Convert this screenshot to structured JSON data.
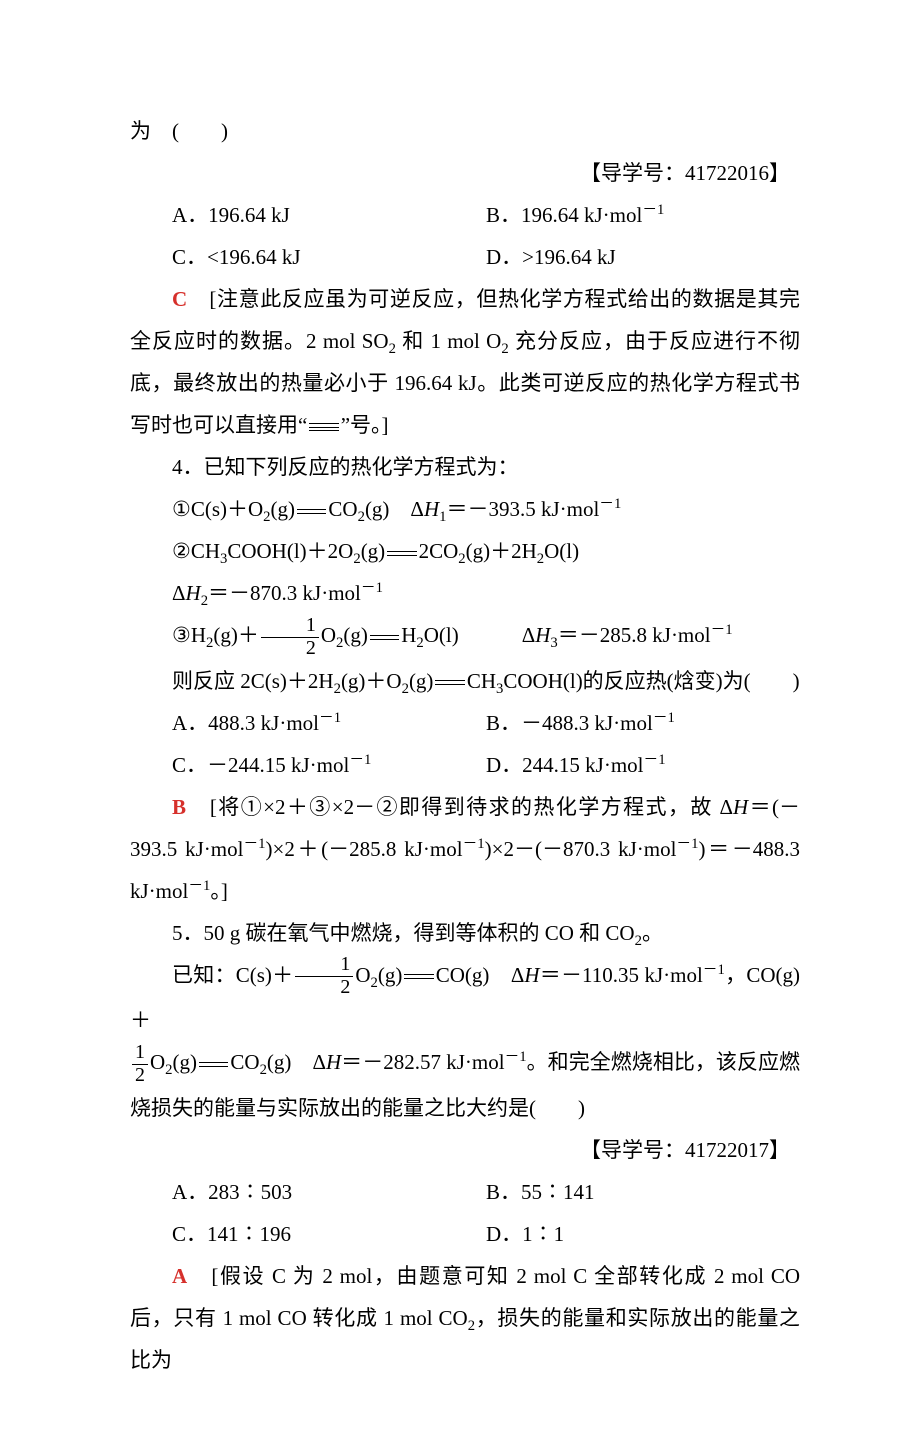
{
  "page": {
    "lead": "为　(　　)",
    "ref3": "【导学号：41722016】",
    "q3opts": {
      "A": "A．196.64 kJ",
      "B": "B．196.64 kJ·mol",
      "B_sup": "－1",
      "C": "C．<196.64 kJ",
      "D": "D．>196.64 kJ"
    },
    "q3ans_letter": "C",
    "q3ans_body": "　[注意此反应虽为可逆反应，但热化学方程式给出的数据是其完全反应时的数据。2 mol SO",
    "q3ans_body2": "和 1 mol O",
    "q3ans_body3": "充分反应，由于反应进行不彻底，最终放出的热量必小于 196.64 kJ。此类可逆反应的热化学方程式书写时也可以直接用“",
    "q3ans_body4": "”号。]",
    "q4stem": "4．已知下列反应的热化学方程式为：",
    "q4eq1_a": "①C(s)＋O",
    "q4eq1_b": "(g)",
    "q4eq1_c": "CO",
    "q4eq1_d": "(g)　Δ",
    "q4eq1_e": "＝－393.5 kJ·mol",
    "q4eq2_a": "②CH",
    "q4eq2_b": "COOH(l)＋2O",
    "q4eq2_c": "(g)",
    "q4eq2_d": "2CO",
    "q4eq2_e": "(g)＋2H",
    "q4eq2_f": "O(l)",
    "q4dh2": "Δ",
    "q4dh2b": "＝－870.3 kJ·mol",
    "q4eq3_a": "③H",
    "q4eq3_b": "(g)＋",
    "q4eq3_c": "O",
    "q4eq3_d": "(g)",
    "q4eq3_e": "H",
    "q4eq3_f": "O(l)",
    "q4eq3_g": "Δ",
    "q4eq3_h": "＝－285.8 kJ·mol",
    "q4then_a": "则反应 2C(s)＋2H",
    "q4then_b": "(g)＋O",
    "q4then_c": "(g)",
    "q4then_d": "CH",
    "q4then_e": "COOH(l)的反应热(焓变)为(　　)",
    "q4opts": {
      "A": "A．488.3 kJ·mol",
      "B": "B．－488.3 kJ·mol",
      "C": "C．－244.15 kJ·mol",
      "D": "D．244.15 kJ·mol"
    },
    "sup_neg1": "－1",
    "q4ans_letter": "B",
    "q4ans_body_a": "　[将①×2＋③×2－②即得到待求的热化学方程式，故 Δ",
    "q4ans_body_b": "＝(－393.5 kJ·mol",
    "q4ans_body_c": ")×2＋(－285.8 kJ·mol",
    "q4ans_body_d": ")×2－(－870.3 kJ·mol",
    "q4ans_body_e": ")＝－488.3 kJ·mol",
    "q4ans_body_f": "。]",
    "q5stem_a": "5．50 g 碳在氧气中燃烧，得到等体积的 CO 和 CO",
    "q5stem_b": "。",
    "q5known_a": "已知：C(s)＋",
    "q5known_b": "O",
    "q5known_c": "(g)",
    "q5known_d": "CO(g)　Δ",
    "q5known_e": "＝－110.35 kJ·mol",
    "q5known_f": "，CO(g)＋",
    "q5known2_a": "O",
    "q5known2_b": "(g)",
    "q5known2_c": "CO",
    "q5known2_d": "(g)　Δ",
    "q5known2_e": "＝－282.57 kJ·mol",
    "q5known2_f": "。和完全燃烧相比，该反应燃烧损失的能量与实际放出的能量之比大约是(　　)",
    "ref5": "【导学号：41722017】",
    "q5opts": {
      "A": "A．283∶503",
      "B": "B．55∶141",
      "C": "C．141∶196",
      "D": "D．1∶1"
    },
    "q5ans_letter": "A",
    "q5ans_body_a": "　[假设 C 为 2 mol，由题意可知 2 mol C 全部转化成 2 mol CO 后，只有 1 mol CO 转化成 1 mol CO",
    "q5ans_body_b": "，损失的能量和实际放出的能量之比为",
    "H_italic": "H",
    "sub2": "2",
    "sub3": "3",
    "sub1": "1",
    "frac12_num": "1",
    "frac12_den": "2",
    "colon_spaced": "　　　"
  }
}
